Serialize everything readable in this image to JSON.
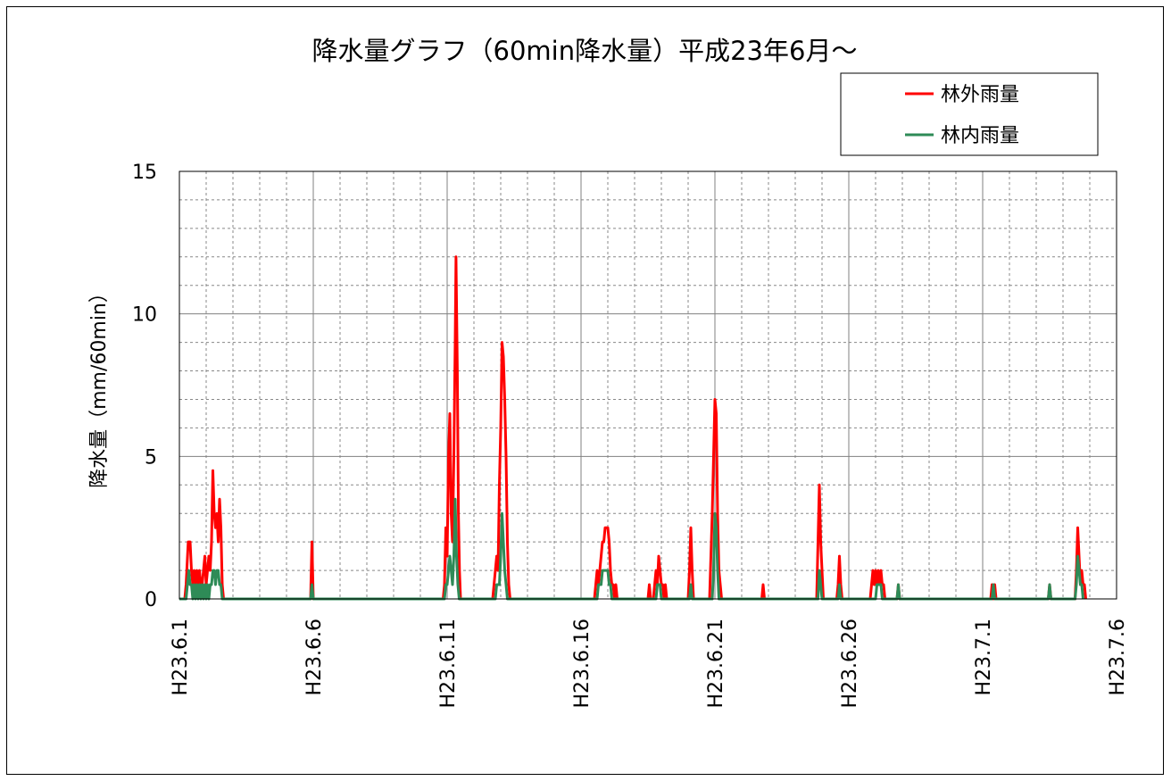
{
  "chart_data": {
    "type": "line",
    "title": "降水量グラフ（60min降水量）平成23年6月～",
    "ylabel": "降水量（mm/60min）",
    "xlabel": "",
    "ylim": [
      0,
      15
    ],
    "y_ticks": [
      0,
      5,
      10,
      15
    ],
    "y_tick_labels": [
      "0",
      "5",
      "10",
      "15"
    ],
    "x_range": [
      0,
      35
    ],
    "x_unit": "days since H23.6.1",
    "x_ticks": [
      0,
      5,
      10,
      15,
      20,
      25,
      30,
      35
    ],
    "x_tick_labels": [
      "H23.6.1",
      "H23.6.6",
      "H23.6.11",
      "H23.6.16",
      "H23.6.21",
      "H23.6.26",
      "H23.7.1",
      "H23.7.6"
    ],
    "grid": true,
    "legend_position": "top-right",
    "series": [
      {
        "name": "林外雨量",
        "color": "#ff0000",
        "points": [
          [
            0.0,
            0
          ],
          [
            0.2,
            0
          ],
          [
            0.25,
            0.5
          ],
          [
            0.33,
            2.0
          ],
          [
            0.4,
            2.0
          ],
          [
            0.45,
            1.0
          ],
          [
            0.5,
            0.5
          ],
          [
            0.55,
            1.0
          ],
          [
            0.6,
            0.5
          ],
          [
            0.65,
            1.0
          ],
          [
            0.7,
            0.5
          ],
          [
            0.75,
            1.0
          ],
          [
            0.8,
            0.5
          ],
          [
            0.85,
            0.5
          ],
          [
            0.9,
            1.0
          ],
          [
            0.95,
            1.5
          ],
          [
            1.0,
            0.5
          ],
          [
            1.05,
            1.0
          ],
          [
            1.1,
            1.5
          ],
          [
            1.15,
            1.0
          ],
          [
            1.2,
            2.0
          ],
          [
            1.25,
            4.5
          ],
          [
            1.3,
            3.0
          ],
          [
            1.35,
            2.5
          ],
          [
            1.4,
            3.0
          ],
          [
            1.45,
            2.0
          ],
          [
            1.5,
            3.5
          ],
          [
            1.55,
            2.5
          ],
          [
            1.6,
            0.5
          ],
          [
            1.65,
            0
          ],
          [
            4.9,
            0
          ],
          [
            4.95,
            2.0
          ],
          [
            5.0,
            0
          ],
          [
            9.85,
            0
          ],
          [
            9.9,
            0.5
          ],
          [
            9.95,
            2.5
          ],
          [
            10.0,
            1.5
          ],
          [
            10.05,
            5.0
          ],
          [
            10.1,
            6.5
          ],
          [
            10.15,
            3.0
          ],
          [
            10.2,
            2.0
          ],
          [
            10.25,
            5.0
          ],
          [
            10.3,
            9.0
          ],
          [
            10.33,
            12.0
          ],
          [
            10.38,
            8.0
          ],
          [
            10.42,
            3.0
          ],
          [
            10.46,
            1.0
          ],
          [
            10.5,
            0
          ],
          [
            11.7,
            0
          ],
          [
            11.75,
            0.5
          ],
          [
            11.8,
            1.0
          ],
          [
            11.85,
            1.5
          ],
          [
            11.9,
            1.0
          ],
          [
            11.95,
            4.0
          ],
          [
            12.0,
            6.0
          ],
          [
            12.05,
            9.0
          ],
          [
            12.1,
            8.5
          ],
          [
            12.15,
            7.0
          ],
          [
            12.2,
            5.0
          ],
          [
            12.25,
            2.0
          ],
          [
            12.3,
            0.5
          ],
          [
            12.35,
            0
          ],
          [
            15.5,
            0
          ],
          [
            15.55,
            0.5
          ],
          [
            15.6,
            1.0
          ],
          [
            15.65,
            0.5
          ],
          [
            15.7,
            1.0
          ],
          [
            15.75,
            1.5
          ],
          [
            15.8,
            2.0
          ],
          [
            15.85,
            2.0
          ],
          [
            15.9,
            2.5
          ],
          [
            15.95,
            2.5
          ],
          [
            16.0,
            2.5
          ],
          [
            16.05,
            2.0
          ],
          [
            16.1,
            1.0
          ],
          [
            16.15,
            0.5
          ],
          [
            16.2,
            0.5
          ],
          [
            16.25,
            0
          ],
          [
            16.3,
            0.5
          ],
          [
            16.35,
            0
          ],
          [
            17.5,
            0
          ],
          [
            17.55,
            0.5
          ],
          [
            17.6,
            0
          ],
          [
            17.7,
            0
          ],
          [
            17.75,
            0.5
          ],
          [
            17.8,
            1.0
          ],
          [
            17.85,
            0.5
          ],
          [
            17.9,
            1.5
          ],
          [
            17.95,
            1.0
          ],
          [
            18.0,
            0.5
          ],
          [
            18.05,
            0.5
          ],
          [
            18.1,
            0
          ],
          [
            18.15,
            0.5
          ],
          [
            18.2,
            0
          ],
          [
            19.0,
            0
          ],
          [
            19.05,
            1.0
          ],
          [
            19.1,
            2.5
          ],
          [
            19.15,
            1.0
          ],
          [
            19.2,
            0
          ],
          [
            19.8,
            0
          ],
          [
            19.85,
            1.5
          ],
          [
            19.9,
            3.0
          ],
          [
            19.95,
            5.0
          ],
          [
            20.0,
            7.0
          ],
          [
            20.05,
            6.5
          ],
          [
            20.1,
            3.0
          ],
          [
            20.15,
            1.0
          ],
          [
            20.2,
            0.5
          ],
          [
            20.25,
            0
          ],
          [
            21.75,
            0
          ],
          [
            21.8,
            0.5
          ],
          [
            21.85,
            0
          ],
          [
            23.8,
            0
          ],
          [
            23.85,
            2.0
          ],
          [
            23.9,
            4.0
          ],
          [
            23.95,
            2.0
          ],
          [
            24.0,
            1.0
          ],
          [
            24.05,
            0
          ],
          [
            24.55,
            0
          ],
          [
            24.6,
            0.5
          ],
          [
            24.65,
            1.5
          ],
          [
            24.7,
            0.5
          ],
          [
            24.75,
            0
          ],
          [
            25.8,
            0
          ],
          [
            25.85,
            0.5
          ],
          [
            25.9,
            1.0
          ],
          [
            25.95,
            0.5
          ],
          [
            26.0,
            1.0
          ],
          [
            26.05,
            0.5
          ],
          [
            26.1,
            1.0
          ],
          [
            26.15,
            0.5
          ],
          [
            26.2,
            1.0
          ],
          [
            26.25,
            0.5
          ],
          [
            26.3,
            0.5
          ],
          [
            26.35,
            0
          ],
          [
            26.8,
            0
          ],
          [
            26.85,
            0.5
          ],
          [
            26.9,
            0
          ],
          [
            30.3,
            0
          ],
          [
            30.35,
            0.5
          ],
          [
            30.4,
            0
          ],
          [
            30.45,
            0.5
          ],
          [
            30.5,
            0
          ],
          [
            32.45,
            0
          ],
          [
            32.5,
            0.5
          ],
          [
            32.55,
            0
          ],
          [
            33.45,
            0
          ],
          [
            33.5,
            1.0
          ],
          [
            33.55,
            2.5
          ],
          [
            33.6,
            1.5
          ],
          [
            33.65,
            0.5
          ],
          [
            33.7,
            1.0
          ],
          [
            33.75,
            0.5
          ],
          [
            33.8,
            0.5
          ],
          [
            33.85,
            0
          ]
        ]
      },
      {
        "name": "林内雨量",
        "color": "#2e8b57",
        "points": [
          [
            0.0,
            0
          ],
          [
            0.25,
            0
          ],
          [
            0.3,
            0.5
          ],
          [
            0.35,
            1.0
          ],
          [
            0.4,
            0.5
          ],
          [
            0.45,
            0.5
          ],
          [
            0.5,
            0
          ],
          [
            0.55,
            0.5
          ],
          [
            0.6,
            0
          ],
          [
            0.65,
            0.5
          ],
          [
            0.7,
            0
          ],
          [
            0.75,
            0.5
          ],
          [
            0.8,
            0
          ],
          [
            0.85,
            0.5
          ],
          [
            0.9,
            0
          ],
          [
            0.95,
            0.5
          ],
          [
            1.0,
            0
          ],
          [
            1.05,
            0.5
          ],
          [
            1.1,
            0
          ],
          [
            1.15,
            0.5
          ],
          [
            1.2,
            0.5
          ],
          [
            1.25,
            1.0
          ],
          [
            1.3,
            1.0
          ],
          [
            1.35,
            0.5
          ],
          [
            1.4,
            1.0
          ],
          [
            1.45,
            1.0
          ],
          [
            1.5,
            0.5
          ],
          [
            1.55,
            0.5
          ],
          [
            1.6,
            0
          ],
          [
            4.9,
            0
          ],
          [
            4.95,
            0.5
          ],
          [
            5.0,
            0
          ],
          [
            9.9,
            0
          ],
          [
            9.95,
            0.5
          ],
          [
            10.0,
            0.5
          ],
          [
            10.05,
            1.0
          ],
          [
            10.1,
            1.5
          ],
          [
            10.15,
            1.0
          ],
          [
            10.2,
            0.5
          ],
          [
            10.25,
            1.5
          ],
          [
            10.3,
            3.5
          ],
          [
            10.35,
            1.5
          ],
          [
            10.4,
            0.5
          ],
          [
            10.45,
            0
          ],
          [
            11.8,
            0
          ],
          [
            11.85,
            0.5
          ],
          [
            11.9,
            0.5
          ],
          [
            11.95,
            0.5
          ],
          [
            12.0,
            1.5
          ],
          [
            12.05,
            3.0
          ],
          [
            12.1,
            2.0
          ],
          [
            12.15,
            1.0
          ],
          [
            12.2,
            0.5
          ],
          [
            12.25,
            0
          ],
          [
            15.6,
            0
          ],
          [
            15.65,
            0.5
          ],
          [
            15.7,
            0.5
          ],
          [
            15.75,
            0.5
          ],
          [
            15.8,
            1.0
          ],
          [
            15.85,
            1.0
          ],
          [
            15.9,
            1.0
          ],
          [
            15.95,
            1.0
          ],
          [
            16.0,
            1.0
          ],
          [
            16.05,
            0.5
          ],
          [
            16.1,
            0.5
          ],
          [
            16.15,
            0
          ],
          [
            17.8,
            0
          ],
          [
            17.85,
            0.5
          ],
          [
            17.9,
            0.5
          ],
          [
            17.95,
            0.5
          ],
          [
            18.0,
            0
          ],
          [
            19.05,
            0
          ],
          [
            19.1,
            0.5
          ],
          [
            19.15,
            0
          ],
          [
            19.9,
            0
          ],
          [
            19.95,
            1.0
          ],
          [
            20.0,
            3.0
          ],
          [
            20.05,
            2.5
          ],
          [
            20.1,
            1.0
          ],
          [
            20.15,
            0
          ],
          [
            23.85,
            0
          ],
          [
            23.9,
            1.0
          ],
          [
            23.95,
            0.5
          ],
          [
            24.0,
            0
          ],
          [
            24.6,
            0
          ],
          [
            24.65,
            0.5
          ],
          [
            24.7,
            0
          ],
          [
            26.0,
            0
          ],
          [
            26.05,
            0.5
          ],
          [
            26.1,
            0.5
          ],
          [
            26.15,
            0.5
          ],
          [
            26.2,
            0.5
          ],
          [
            26.25,
            0
          ],
          [
            26.8,
            0
          ],
          [
            26.85,
            0.5
          ],
          [
            26.9,
            0
          ],
          [
            30.35,
            0
          ],
          [
            30.4,
            0.5
          ],
          [
            30.45,
            0
          ],
          [
            32.45,
            0
          ],
          [
            32.5,
            0.5
          ],
          [
            32.55,
            0
          ],
          [
            33.45,
            0
          ],
          [
            33.5,
            0.5
          ],
          [
            33.55,
            1.5
          ],
          [
            33.6,
            1.0
          ],
          [
            33.65,
            0.5
          ],
          [
            33.7,
            0.5
          ],
          [
            33.75,
            0
          ]
        ]
      }
    ]
  }
}
